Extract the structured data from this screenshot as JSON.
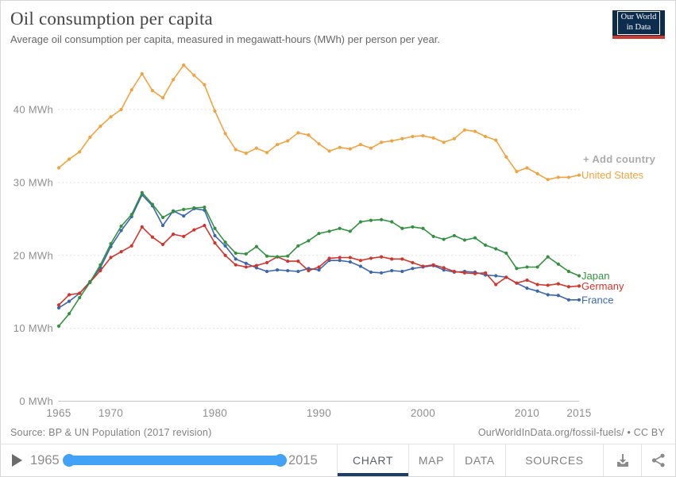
{
  "header": {
    "title": "Oil consumption per capita",
    "subtitle": "Average oil consumption per capita, measured in megawatt-hours (MWh) per person per year.",
    "logo": {
      "line1": "Our World",
      "line2": "in Data",
      "bg_color": "#0c2d4e",
      "stripe_color": "#cf3a2c"
    }
  },
  "chart_data": {
    "type": "line",
    "title": "Oil consumption per capita",
    "ylabel": "MWh per person per year",
    "ylim": [
      0,
      47
    ],
    "grid": "horizontal dashed gridlines",
    "legend_position": "labels at right end of each line",
    "add_country_label": "+ Add country",
    "x": [
      1965,
      1966,
      1967,
      1968,
      1969,
      1970,
      1971,
      1972,
      1973,
      1974,
      1975,
      1976,
      1977,
      1978,
      1979,
      1980,
      1981,
      1982,
      1983,
      1984,
      1985,
      1986,
      1987,
      1988,
      1989,
      1990,
      1991,
      1992,
      1993,
      1994,
      1995,
      1996,
      1997,
      1998,
      1999,
      2000,
      2001,
      2002,
      2003,
      2004,
      2005,
      2006,
      2007,
      2008,
      2009,
      2010,
      2011,
      2012,
      2013,
      2014,
      2015
    ],
    "xticks": [
      {
        "value": 1965,
        "label": "1965"
      },
      {
        "value": 1970,
        "label": "1970"
      },
      {
        "value": 1980,
        "label": "1980"
      },
      {
        "value": 1990,
        "label": "1990"
      },
      {
        "value": 2000,
        "label": "2000"
      },
      {
        "value": 2010,
        "label": "2010"
      },
      {
        "value": 2015,
        "label": "2015"
      }
    ],
    "yticks": [
      {
        "value": 0,
        "label": "0 MWh"
      },
      {
        "value": 10,
        "label": "10 MWh"
      },
      {
        "value": 20,
        "label": "20 MWh"
      },
      {
        "value": 30,
        "label": "30 MWh"
      },
      {
        "value": 40,
        "label": "40 MWh"
      }
    ],
    "series": [
      {
        "name": "United States",
        "color": "#f1a340",
        "values": [
          32.0,
          33.2,
          34.2,
          36.2,
          37.7,
          39.0,
          40.0,
          42.7,
          44.9,
          42.6,
          41.6,
          44.1,
          46.1,
          44.7,
          43.4,
          39.8,
          36.7,
          34.5,
          34.0,
          34.7,
          34.1,
          35.2,
          35.7,
          36.8,
          36.5,
          35.3,
          34.3,
          34.8,
          34.6,
          35.2,
          34.7,
          35.5,
          35.7,
          36.0,
          36.3,
          36.4,
          36.1,
          35.5,
          36.0,
          37.2,
          37.0,
          36.3,
          35.8,
          33.5,
          31.5,
          32.0,
          31.2,
          30.4,
          30.7,
          30.7,
          31.0
        ]
      },
      {
        "name": "Japan",
        "color": "#33913f",
        "values": [
          10.3,
          12.0,
          14.2,
          16.3,
          18.7,
          21.6,
          24.0,
          25.6,
          28.6,
          27.0,
          25.2,
          26.0,
          26.3,
          26.5,
          26.6,
          23.7,
          21.8,
          20.3,
          20.2,
          21.2,
          19.9,
          19.8,
          19.9,
          21.3,
          22.0,
          23.0,
          23.3,
          23.7,
          23.3,
          24.6,
          24.8,
          24.9,
          24.6,
          23.7,
          23.9,
          23.7,
          22.6,
          22.2,
          22.7,
          22.1,
          22.4,
          21.4,
          20.9,
          20.3,
          18.2,
          18.4,
          18.4,
          19.8,
          18.8,
          17.8,
          17.2
        ]
      },
      {
        "name": "Germany",
        "color": "#d2352b",
        "values": [
          13.2,
          14.6,
          14.8,
          16.3,
          17.9,
          19.7,
          20.5,
          21.3,
          23.9,
          22.5,
          21.5,
          22.9,
          22.6,
          23.5,
          24.1,
          21.7,
          20.0,
          18.7,
          18.4,
          18.6,
          19.0,
          19.8,
          19.2,
          19.2,
          17.9,
          18.4,
          19.6,
          19.7,
          19.7,
          19.3,
          19.6,
          19.8,
          19.5,
          19.5,
          19.0,
          18.5,
          18.7,
          18.3,
          17.8,
          17.6,
          17.5,
          17.6,
          16.0,
          17.0,
          16.2,
          16.6,
          16.0,
          15.9,
          16.1,
          15.7,
          15.8
        ]
      },
      {
        "name": "France",
        "color": "#3b66b0",
        "values": [
          12.8,
          13.7,
          14.8,
          16.4,
          18.3,
          21.2,
          23.4,
          25.3,
          28.3,
          26.8,
          24.1,
          26.1,
          25.4,
          26.4,
          26.2,
          22.7,
          21.3,
          19.5,
          18.9,
          18.3,
          17.8,
          18.0,
          17.9,
          17.8,
          18.2,
          18.0,
          19.3,
          19.3,
          19.1,
          18.5,
          17.7,
          17.6,
          17.9,
          17.8,
          18.2,
          18.4,
          18.6,
          18.0,
          17.7,
          17.8,
          17.7,
          17.3,
          17.2,
          17.0,
          16.2,
          15.5,
          15.1,
          14.6,
          14.5,
          13.9,
          13.9
        ]
      }
    ]
  },
  "source": {
    "left": "Source: BP & UN Population (2017 revision)",
    "right": "OurWorldInData.org/fossil-fuels/ • CC BY"
  },
  "footer": {
    "timeline": {
      "start_year": "1965",
      "end_year": "2015",
      "slider_color": "#42a2f5"
    },
    "tabs": [
      {
        "label": "CHART",
        "active": true
      },
      {
        "label": "MAP",
        "active": false
      },
      {
        "label": "DATA",
        "active": false
      },
      {
        "label": "SOURCES",
        "active": false
      }
    ],
    "active_tab_underline_color": "#1d3d63"
  }
}
